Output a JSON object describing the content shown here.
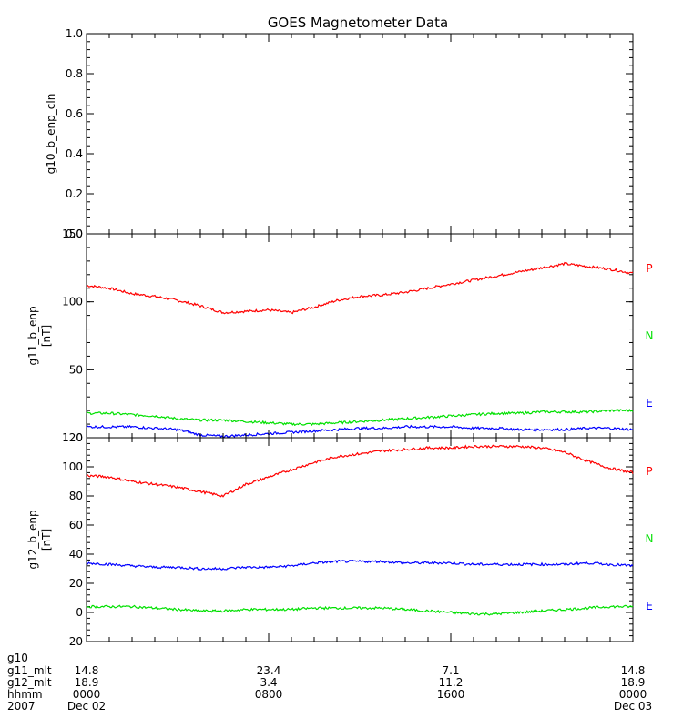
{
  "chart_data": [
    {
      "type": "line",
      "title": "GOES Magnetometer Data",
      "ylabel": "g10_b_enp_cln",
      "ylim": [
        0,
        1.0
      ],
      "yticks": [
        "0.0",
        "0.2",
        "0.4",
        "0.6",
        "0.8",
        "1.0"
      ],
      "series": []
    },
    {
      "type": "line",
      "ylabel": "g11_b_enp",
      "yunit": "[nT]",
      "ylim": [
        0,
        150
      ],
      "yticks": [
        "0",
        "50",
        "100",
        "150"
      ],
      "x_hours": [
        0,
        1,
        2,
        3,
        4,
        5,
        6,
        7,
        8,
        9,
        10,
        11,
        12,
        13,
        14,
        15,
        16,
        17,
        18,
        19,
        20,
        21,
        22,
        23,
        24
      ],
      "series": [
        {
          "name": "P",
          "color": "#ff0000",
          "values": [
            112,
            110,
            106,
            104,
            101,
            97,
            92,
            93,
            94,
            92,
            96,
            101,
            104,
            105,
            107,
            110,
            113,
            116,
            119,
            122,
            125,
            128,
            126,
            124,
            121
          ]
        },
        {
          "name": "N",
          "color": "#00e000",
          "values": [
            18,
            18,
            17,
            16,
            14,
            13,
            13,
            12,
            11,
            10,
            10,
            11,
            12,
            13,
            14,
            15,
            16,
            17,
            18,
            18,
            19,
            19,
            19,
            20,
            20
          ]
        },
        {
          "name": "E",
          "color": "#0000ff",
          "values": [
            8,
            8,
            8,
            7,
            6,
            2,
            1,
            2,
            3,
            4,
            5,
            6,
            7,
            7,
            8,
            8,
            8,
            7,
            7,
            6,
            6,
            6,
            7,
            7,
            6
          ]
        }
      ]
    },
    {
      "type": "line",
      "ylabel": "g12_b_enp",
      "yunit": "[nT]",
      "ylim": [
        -20,
        120
      ],
      "yticks": [
        "-20",
        "0",
        "20",
        "40",
        "60",
        "80",
        "100",
        "120"
      ],
      "x_hours": [
        0,
        1,
        2,
        3,
        4,
        5,
        6,
        7,
        8,
        9,
        10,
        11,
        12,
        13,
        14,
        15,
        16,
        17,
        18,
        19,
        20,
        21,
        22,
        23,
        24
      ],
      "series": [
        {
          "name": "P",
          "color": "#ff0000",
          "values": [
            94,
            93,
            90,
            88,
            86,
            83,
            80,
            88,
            93,
            98,
            103,
            107,
            109,
            111,
            112,
            113,
            113,
            114,
            114,
            114,
            113,
            110,
            104,
            99,
            96
          ]
        },
        {
          "name": "N",
          "color": "#00e000",
          "values": [
            4,
            4,
            4,
            3,
            2,
            1,
            1,
            2,
            2,
            2,
            3,
            3,
            3,
            3,
            2,
            1,
            0,
            -1,
            -1,
            0,
            1,
            2,
            3,
            4,
            4
          ]
        },
        {
          "name": "E",
          "color": "#0000ff",
          "values": [
            34,
            33,
            32,
            31,
            31,
            30,
            30,
            31,
            31,
            32,
            34,
            35,
            35,
            35,
            34,
            34,
            34,
            33,
            33,
            33,
            33,
            33,
            34,
            33,
            32
          ]
        }
      ]
    }
  ],
  "xaxis": {
    "rows": [
      {
        "label": "g10",
        "values": [
          "",
          "",
          "",
          ""
        ]
      },
      {
        "label": "g11_mlt",
        "values": [
          "14.8",
          "23.4",
          "7.1",
          "14.8"
        ]
      },
      {
        "label": "g12_mlt",
        "values": [
          "18.9",
          "3.4",
          "11.2",
          "18.9"
        ]
      },
      {
        "label": "hhmm",
        "values": [
          "0000",
          "0800",
          "1600",
          "0000"
        ]
      },
      {
        "label": "2007",
        "values": [
          "Dec 02",
          "",
          "",
          "Dec 03"
        ]
      }
    ]
  }
}
